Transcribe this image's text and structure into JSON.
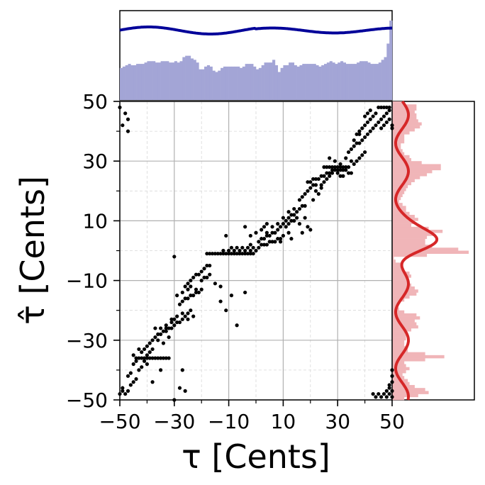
{
  "chart_data": {
    "type": "scatter",
    "xlabel": "τ [Cents]",
    "ylabel": "τ̂ [Cents]",
    "xlim": [
      -50,
      50
    ],
    "ylim": [
      -50,
      50
    ],
    "xticks": [
      -50,
      -30,
      -10,
      10,
      30,
      50
    ],
    "yticks": [
      -50,
      -30,
      -10,
      10,
      30,
      50
    ],
    "grid": "major solid, minor dashed",
    "colors": {
      "points": "#000000",
      "top_hist": "#a3a5d6",
      "top_curve": "#000099",
      "right_hist": "#f0b5b8",
      "right_curve": "#d62728",
      "grid": "#b0b0b0"
    },
    "scatter_points": [
      [
        -50,
        -48
      ],
      [
        -49,
        -47
      ],
      [
        -48,
        -48
      ],
      [
        -47,
        -47
      ],
      [
        -49,
        -46
      ],
      [
        -46,
        -45
      ],
      [
        -45,
        -44
      ],
      [
        -44,
        -43
      ],
      [
        -47,
        -42
      ],
      [
        -46,
        -41
      ],
      [
        -43,
        -40
      ],
      [
        -42,
        -39
      ],
      [
        -45,
        -38
      ],
      [
        -41,
        -37
      ],
      [
        -40,
        -36
      ],
      [
        -39,
        -36
      ],
      [
        -38,
        -36
      ],
      [
        -37,
        -36
      ],
      [
        -36,
        -36
      ],
      [
        -35,
        -36
      ],
      [
        -34,
        -36
      ],
      [
        -33,
        -36
      ],
      [
        -32,
        -36
      ],
      [
        -44,
        -36
      ],
      [
        -43,
        -36
      ],
      [
        -42,
        -36
      ],
      [
        -41,
        -36
      ],
      [
        -40,
        -35
      ],
      [
        -39,
        -34
      ],
      [
        -38,
        -33
      ],
      [
        -40,
        -32
      ],
      [
        -39,
        -31
      ],
      [
        -38,
        -30
      ],
      [
        -37,
        -29
      ],
      [
        -36,
        -28
      ],
      [
        -35,
        -28
      ],
      [
        -34,
        -27
      ],
      [
        -33,
        -27
      ],
      [
        -32,
        -26
      ],
      [
        -31,
        -26
      ],
      [
        -30,
        -25
      ],
      [
        -29,
        -24
      ],
      [
        -28,
        -24
      ],
      [
        -27,
        -23
      ],
      [
        -26,
        -22
      ],
      [
        -25,
        -21
      ],
      [
        -24,
        -20
      ],
      [
        -36,
        -30
      ],
      [
        -34,
        -31
      ],
      [
        -32,
        -29
      ],
      [
        -37,
        -26
      ],
      [
        -35,
        -26
      ],
      [
        -33,
        -25
      ],
      [
        -31,
        -23
      ],
      [
        -29,
        -22
      ],
      [
        -27,
        -21
      ],
      [
        -25,
        -23
      ],
      [
        -23,
        -22
      ],
      [
        -35,
        -40
      ],
      [
        -38,
        -44
      ],
      [
        -28,
        -18
      ],
      [
        -27,
        -17
      ],
      [
        -26,
        -16
      ],
      [
        -25,
        -16
      ],
      [
        -24,
        -15
      ],
      [
        -23,
        -15
      ],
      [
        -22,
        -14
      ],
      [
        -21,
        -14
      ],
      [
        -20,
        -13
      ],
      [
        -26,
        -12
      ],
      [
        -25,
        -11
      ],
      [
        -24,
        -10
      ],
      [
        -23,
        -9
      ],
      [
        -22,
        -8
      ],
      [
        -21,
        -8
      ],
      [
        -20,
        -7
      ],
      [
        -19,
        -6
      ],
      [
        -18,
        -5
      ],
      [
        -17,
        -5
      ],
      [
        -22,
        -13
      ],
      [
        -24,
        -12
      ],
      [
        -20,
        -10
      ],
      [
        -19,
        -9
      ],
      [
        -18,
        -9
      ],
      [
        -17,
        -8
      ],
      [
        -27,
        -14
      ],
      [
        -25,
        -13
      ],
      [
        -29,
        -15
      ],
      [
        -15,
        -11
      ],
      [
        -13,
        -12
      ],
      [
        -9,
        -15
      ],
      [
        -11,
        -20
      ],
      [
        -27,
        -40
      ],
      [
        -28,
        -46
      ],
      [
        -30,
        -50
      ],
      [
        -26,
        -47
      ],
      [
        -30,
        -2
      ],
      [
        -33,
        -26
      ],
      [
        -31,
        -24
      ],
      [
        -30,
        -23
      ],
      [
        -18,
        -1
      ],
      [
        -17,
        -1
      ],
      [
        -16,
        -1
      ],
      [
        -15,
        -1
      ],
      [
        -14,
        -1
      ],
      [
        -13,
        -1
      ],
      [
        -12,
        -1
      ],
      [
        -11,
        -1
      ],
      [
        -10,
        -1
      ],
      [
        -9,
        -1
      ],
      [
        -8,
        -1
      ],
      [
        -7,
        -1
      ],
      [
        -6,
        -1
      ],
      [
        -5,
        -1
      ],
      [
        -4,
        -1
      ],
      [
        -3,
        -1
      ],
      [
        -2,
        -1
      ],
      [
        -1,
        -1
      ],
      [
        -12,
        0
      ],
      [
        -10,
        0
      ],
      [
        -8,
        0
      ],
      [
        -6,
        0
      ],
      [
        -4,
        0
      ],
      [
        -2,
        0
      ],
      [
        0,
        0
      ],
      [
        -9,
        1
      ],
      [
        -7,
        1
      ],
      [
        -5,
        1
      ],
      [
        -3,
        1
      ],
      [
        -1,
        1
      ],
      [
        1,
        1
      ],
      [
        2,
        2
      ],
      [
        3,
        2
      ],
      [
        4,
        2
      ],
      [
        5,
        3
      ],
      [
        6,
        3
      ],
      [
        7,
        3
      ],
      [
        8,
        4
      ],
      [
        9,
        4
      ],
      [
        10,
        5
      ],
      [
        1,
        3
      ],
      [
        2,
        4
      ],
      [
        3,
        4
      ],
      [
        4,
        5
      ],
      [
        5,
        5
      ],
      [
        6,
        6
      ],
      [
        7,
        6
      ],
      [
        8,
        7
      ],
      [
        9,
        8
      ],
      [
        10,
        9
      ],
      [
        11,
        10
      ],
      [
        12,
        11
      ],
      [
        13,
        12
      ],
      [
        14,
        12
      ],
      [
        15,
        13
      ],
      [
        11,
        8
      ],
      [
        12,
        9
      ],
      [
        13,
        10
      ],
      [
        14,
        10
      ],
      [
        15,
        11
      ],
      [
        0,
        6
      ],
      [
        -2,
        5
      ],
      [
        -4,
        8
      ],
      [
        2,
        7
      ],
      [
        4,
        6
      ],
      [
        6,
        8
      ],
      [
        8,
        9
      ],
      [
        10,
        11
      ],
      [
        12,
        13
      ],
      [
        14,
        14
      ],
      [
        16,
        14
      ],
      [
        17,
        15
      ],
      [
        18,
        15
      ],
      [
        16,
        17
      ],
      [
        17,
        18
      ],
      [
        18,
        19
      ],
      [
        19,
        20
      ],
      [
        20,
        21
      ],
      [
        21,
        22
      ],
      [
        22,
        22
      ],
      [
        19,
        23
      ],
      [
        20,
        23
      ],
      [
        21,
        24
      ],
      [
        22,
        24
      ],
      [
        23,
        24
      ],
      [
        24,
        25
      ],
      [
        25,
        25
      ],
      [
        26,
        26
      ],
      [
        27,
        26
      ],
      [
        28,
        27
      ],
      [
        29,
        28
      ],
      [
        30,
        28
      ],
      [
        31,
        28
      ],
      [
        32,
        28
      ],
      [
        33,
        28
      ],
      [
        34,
        28
      ],
      [
        25,
        28
      ],
      [
        26,
        28
      ],
      [
        27,
        28
      ],
      [
        28,
        28
      ],
      [
        24,
        22
      ],
      [
        25,
        23
      ],
      [
        26,
        24
      ],
      [
        27,
        25
      ],
      [
        28,
        26
      ],
      [
        29,
        27
      ],
      [
        30,
        27
      ],
      [
        31,
        27
      ],
      [
        32,
        27
      ],
      [
        33,
        27
      ],
      [
        30,
        26
      ],
      [
        31,
        25
      ],
      [
        32,
        25
      ],
      [
        34,
        26
      ],
      [
        35,
        26
      ],
      [
        36,
        29
      ],
      [
        37,
        30
      ],
      [
        38,
        31
      ],
      [
        39,
        32
      ],
      [
        40,
        33
      ],
      [
        34,
        33
      ],
      [
        35,
        34
      ],
      [
        36,
        35
      ],
      [
        37,
        36
      ],
      [
        38,
        36
      ],
      [
        39,
        37
      ],
      [
        40,
        38
      ],
      [
        41,
        39
      ],
      [
        42,
        40
      ],
      [
        43,
        41
      ],
      [
        44,
        42
      ],
      [
        45,
        43
      ],
      [
        46,
        44
      ],
      [
        47,
        45
      ],
      [
        48,
        46
      ],
      [
        49,
        47
      ],
      [
        45,
        48
      ],
      [
        46,
        48
      ],
      [
        47,
        48
      ],
      [
        48,
        48
      ],
      [
        49,
        48
      ],
      [
        44,
        46
      ],
      [
        43,
        45
      ],
      [
        42,
        44
      ],
      [
        41,
        43
      ],
      [
        40,
        42
      ],
      [
        39,
        41
      ],
      [
        38,
        40
      ],
      [
        37,
        39
      ],
      [
        36,
        37
      ],
      [
        46,
        41
      ],
      [
        47,
        42
      ],
      [
        48,
        43
      ],
      [
        49,
        44
      ],
      [
        50,
        42
      ],
      [
        50,
        41
      ],
      [
        42,
        47
      ],
      [
        41,
        46
      ],
      [
        40,
        45
      ],
      [
        38,
        39
      ],
      [
        21,
        17
      ],
      [
        23,
        19
      ],
      [
        24,
        21
      ],
      [
        22,
        20
      ],
      [
        18,
        11
      ],
      [
        16,
        9
      ],
      [
        19,
        8
      ],
      [
        17,
        6
      ],
      [
        20,
        7
      ],
      [
        13,
        4
      ],
      [
        12,
        6
      ],
      [
        9,
        3
      ],
      [
        -11,
        5
      ],
      [
        -13,
        -17
      ],
      [
        -45,
        -35
      ],
      [
        -43,
        -33
      ],
      [
        -41,
        -33
      ],
      [
        -40,
        -38
      ],
      [
        -42,
        -34
      ],
      [
        -44,
        -37
      ],
      [
        43,
        -48
      ],
      [
        44,
        -49
      ],
      [
        45,
        -48
      ],
      [
        46,
        -49
      ],
      [
        47,
        -48
      ],
      [
        48,
        -49
      ],
      [
        49,
        -48
      ],
      [
        50,
        -49
      ],
      [
        48,
        -47
      ],
      [
        49,
        -46
      ],
      [
        50,
        -47
      ],
      [
        49,
        -45
      ],
      [
        50,
        -44
      ],
      [
        50,
        -42
      ],
      [
        50,
        -40
      ],
      [
        -50,
        48
      ],
      [
        -48,
        46
      ],
      [
        -47,
        44
      ],
      [
        -49,
        42
      ],
      [
        -47,
        40
      ],
      [
        33,
        31
      ],
      [
        35,
        30
      ],
      [
        31,
        29
      ],
      [
        29,
        30
      ],
      [
        27,
        31
      ],
      [
        -7,
        -25
      ],
      [
        -4,
        -14
      ],
      [
        -2,
        2
      ],
      [
        4,
        9
      ],
      [
        3,
        8
      ]
    ]
  }
}
